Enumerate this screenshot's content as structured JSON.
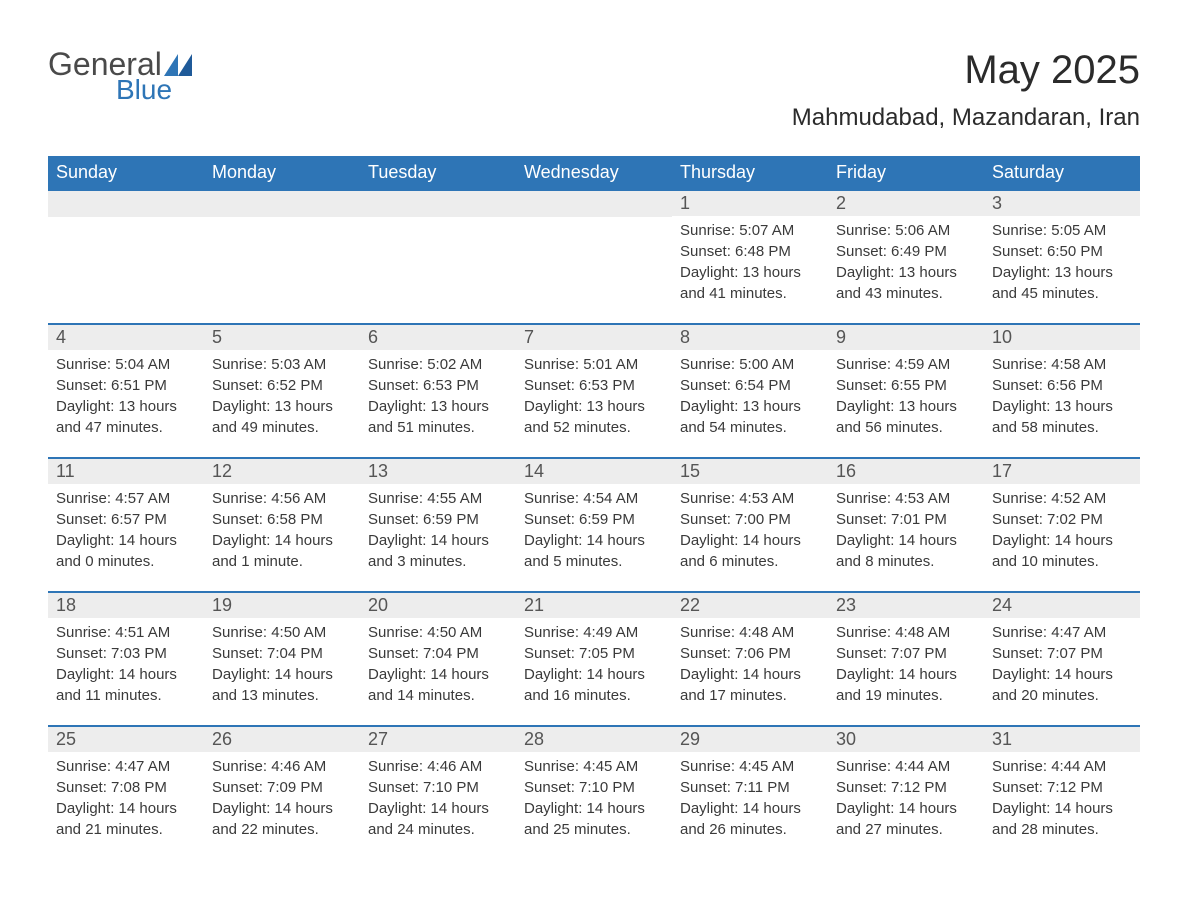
{
  "logo": {
    "text1": "General",
    "text2": "Blue",
    "tri_color": "#2e75b6"
  },
  "title": "May 2025",
  "subtitle": "Mahmudabad, Mazandaran, Iran",
  "colors": {
    "header_bg": "#2e75b6",
    "header_text": "#ffffff",
    "row_border": "#2e75b6",
    "daynum_bg": "#ededed",
    "body_text": "#3a3a3a",
    "page_bg": "#ffffff"
  },
  "weekdays": [
    "Sunday",
    "Monday",
    "Tuesday",
    "Wednesday",
    "Thursday",
    "Friday",
    "Saturday"
  ],
  "labels": {
    "sunrise": "Sunrise",
    "sunset": "Sunset",
    "daylight": "Daylight"
  },
  "weeks": [
    [
      {
        "empty": true
      },
      {
        "empty": true
      },
      {
        "empty": true
      },
      {
        "empty": true
      },
      {
        "num": "1",
        "sunrise": "5:07 AM",
        "sunset": "6:48 PM",
        "dl_h": "13",
        "dl_m": "41"
      },
      {
        "num": "2",
        "sunrise": "5:06 AM",
        "sunset": "6:49 PM",
        "dl_h": "13",
        "dl_m": "43"
      },
      {
        "num": "3",
        "sunrise": "5:05 AM",
        "sunset": "6:50 PM",
        "dl_h": "13",
        "dl_m": "45"
      }
    ],
    [
      {
        "num": "4",
        "sunrise": "5:04 AM",
        "sunset": "6:51 PM",
        "dl_h": "13",
        "dl_m": "47"
      },
      {
        "num": "5",
        "sunrise": "5:03 AM",
        "sunset": "6:52 PM",
        "dl_h": "13",
        "dl_m": "49"
      },
      {
        "num": "6",
        "sunrise": "5:02 AM",
        "sunset": "6:53 PM",
        "dl_h": "13",
        "dl_m": "51"
      },
      {
        "num": "7",
        "sunrise": "5:01 AM",
        "sunset": "6:53 PM",
        "dl_h": "13",
        "dl_m": "52"
      },
      {
        "num": "8",
        "sunrise": "5:00 AM",
        "sunset": "6:54 PM",
        "dl_h": "13",
        "dl_m": "54"
      },
      {
        "num": "9",
        "sunrise": "4:59 AM",
        "sunset": "6:55 PM",
        "dl_h": "13",
        "dl_m": "56"
      },
      {
        "num": "10",
        "sunrise": "4:58 AM",
        "sunset": "6:56 PM",
        "dl_h": "13",
        "dl_m": "58"
      }
    ],
    [
      {
        "num": "11",
        "sunrise": "4:57 AM",
        "sunset": "6:57 PM",
        "dl_h": "14",
        "dl_m": "0"
      },
      {
        "num": "12",
        "sunrise": "4:56 AM",
        "sunset": "6:58 PM",
        "dl_h": "14",
        "dl_m": "1",
        "dl_unit": "minute"
      },
      {
        "num": "13",
        "sunrise": "4:55 AM",
        "sunset": "6:59 PM",
        "dl_h": "14",
        "dl_m": "3"
      },
      {
        "num": "14",
        "sunrise": "4:54 AM",
        "sunset": "6:59 PM",
        "dl_h": "14",
        "dl_m": "5"
      },
      {
        "num": "15",
        "sunrise": "4:53 AM",
        "sunset": "7:00 PM",
        "dl_h": "14",
        "dl_m": "6"
      },
      {
        "num": "16",
        "sunrise": "4:53 AM",
        "sunset": "7:01 PM",
        "dl_h": "14",
        "dl_m": "8"
      },
      {
        "num": "17",
        "sunrise": "4:52 AM",
        "sunset": "7:02 PM",
        "dl_h": "14",
        "dl_m": "10"
      }
    ],
    [
      {
        "num": "18",
        "sunrise": "4:51 AM",
        "sunset": "7:03 PM",
        "dl_h": "14",
        "dl_m": "11"
      },
      {
        "num": "19",
        "sunrise": "4:50 AM",
        "sunset": "7:04 PM",
        "dl_h": "14",
        "dl_m": "13"
      },
      {
        "num": "20",
        "sunrise": "4:50 AM",
        "sunset": "7:04 PM",
        "dl_h": "14",
        "dl_m": "14"
      },
      {
        "num": "21",
        "sunrise": "4:49 AM",
        "sunset": "7:05 PM",
        "dl_h": "14",
        "dl_m": "16"
      },
      {
        "num": "22",
        "sunrise": "4:48 AM",
        "sunset": "7:06 PM",
        "dl_h": "14",
        "dl_m": "17"
      },
      {
        "num": "23",
        "sunrise": "4:48 AM",
        "sunset": "7:07 PM",
        "dl_h": "14",
        "dl_m": "19"
      },
      {
        "num": "24",
        "sunrise": "4:47 AM",
        "sunset": "7:07 PM",
        "dl_h": "14",
        "dl_m": "20"
      }
    ],
    [
      {
        "num": "25",
        "sunrise": "4:47 AM",
        "sunset": "7:08 PM",
        "dl_h": "14",
        "dl_m": "21"
      },
      {
        "num": "26",
        "sunrise": "4:46 AM",
        "sunset": "7:09 PM",
        "dl_h": "14",
        "dl_m": "22"
      },
      {
        "num": "27",
        "sunrise": "4:46 AM",
        "sunset": "7:10 PM",
        "dl_h": "14",
        "dl_m": "24"
      },
      {
        "num": "28",
        "sunrise": "4:45 AM",
        "sunset": "7:10 PM",
        "dl_h": "14",
        "dl_m": "25"
      },
      {
        "num": "29",
        "sunrise": "4:45 AM",
        "sunset": "7:11 PM",
        "dl_h": "14",
        "dl_m": "26"
      },
      {
        "num": "30",
        "sunrise": "4:44 AM",
        "sunset": "7:12 PM",
        "dl_h": "14",
        "dl_m": "27"
      },
      {
        "num": "31",
        "sunrise": "4:44 AM",
        "sunset": "7:12 PM",
        "dl_h": "14",
        "dl_m": "28"
      }
    ]
  ]
}
